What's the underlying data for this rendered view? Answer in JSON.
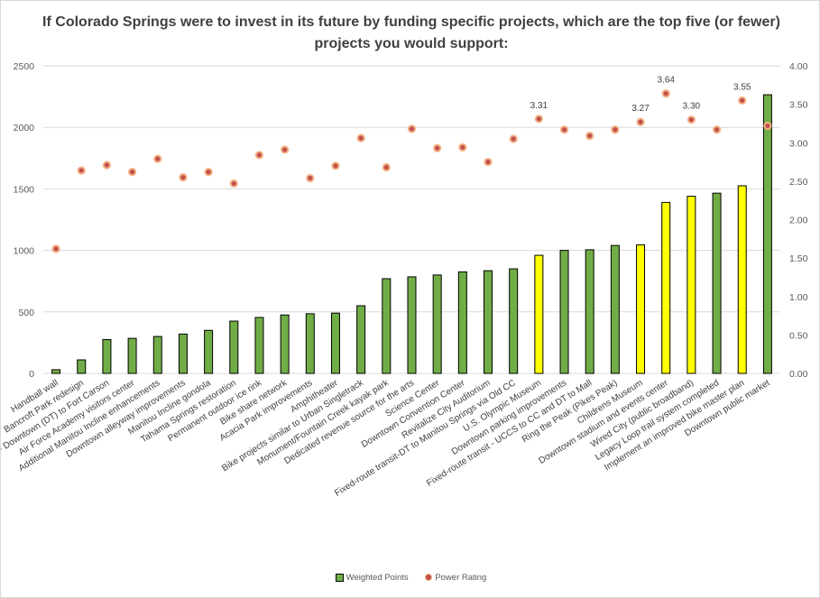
{
  "chart_data": {
    "type": "bar",
    "title": "If Colorado Springs were to invest in its future by funding specific projects, which are the top five (or fewer) projects you would support:",
    "categories": [
      "Handball wall",
      "Bancroft Park redesign",
      "Fixed-route transit - Downtown (DT) to Fort Carson",
      "Air Force Academy visitors center",
      "Additional Manitou Incline enhancements",
      "Downtown alleyway improvements",
      "Manitou Incline gondola",
      "Tahama Springs restoration",
      "Permanent outdoor ice rink",
      "Bike share network",
      "Acacia Park improvements",
      "Amphitheater",
      "Bike projects similar to Urban Singletrack",
      "Monument/Fountain Creek kayak park",
      "Dedicated revenue source for the arts",
      "Science Center",
      "Downtown Convention Center",
      "Revitalize City Auditorium",
      "Fixed-route transit-DT to Manitou Springs via Old CC",
      "U.S. Olympic Museum",
      "Downtown parking improvements",
      "Fixed-route transit - UCCS to CC and DT to Mall",
      "Ring the Peak (Pikes Peak)",
      "Childrens Museum",
      "Downtown stadium and events center",
      "Wired City (public broadband)",
      "Legacy Loop trail system completed",
      "Implement an improved bike master plan",
      "Downtown public market"
    ],
    "series": [
      {
        "name": "Weighted Points",
        "axis": "left",
        "values": [
          30,
          110,
          275,
          285,
          300,
          320,
          350,
          425,
          455,
          475,
          485,
          490,
          550,
          770,
          785,
          800,
          825,
          835,
          850,
          960,
          1000,
          1005,
          1040,
          1045,
          1390,
          1440,
          1465,
          1525,
          2265
        ],
        "highlighted": [
          false,
          false,
          false,
          false,
          false,
          false,
          false,
          false,
          false,
          false,
          false,
          false,
          false,
          false,
          false,
          false,
          false,
          false,
          false,
          true,
          false,
          false,
          false,
          true,
          true,
          true,
          false,
          true,
          false
        ]
      },
      {
        "name": "Power Rating",
        "axis": "right",
        "type": "scatter",
        "values": [
          1.62,
          2.64,
          2.71,
          2.62,
          2.79,
          2.55,
          2.62,
          2.47,
          2.84,
          2.91,
          2.54,
          2.7,
          3.06,
          2.68,
          3.18,
          2.93,
          2.94,
          2.75,
          3.05,
          3.31,
          3.17,
          3.09,
          3.17,
          3.27,
          3.64,
          3.3,
          3.17,
          3.55,
          3.22
        ]
      }
    ],
    "data_labels": [
      "",
      "",
      "",
      "",
      "",
      "",
      "",
      "",
      "",
      "",
      "",
      "",
      "",
      "",
      "",
      "",
      "",
      "",
      "",
      "3.31",
      "",
      "",
      "",
      "3.27",
      "3.64",
      "3.30",
      "",
      "3.55",
      ""
    ],
    "ylim": [
      0,
      2500
    ],
    "yticks": [
      "0",
      "500",
      "1000",
      "1500",
      "2000",
      "2500"
    ],
    "y2lim": [
      0,
      4
    ],
    "y2ticks": [
      "0.00",
      "0.50",
      "1.00",
      "1.50",
      "2.00",
      "2.50",
      "3.00",
      "3.50",
      "4.00"
    ],
    "legend": [
      "Weighted Points",
      "Power Rating"
    ],
    "legend_position": "bottom",
    "colors": {
      "bar": "#70ad47",
      "bar_highlight": "#ffff00",
      "bar_border": "#000000",
      "dot_fill": "#c0504d",
      "dot_ring": "#f4b183",
      "grid": "#d9d9d9"
    }
  }
}
